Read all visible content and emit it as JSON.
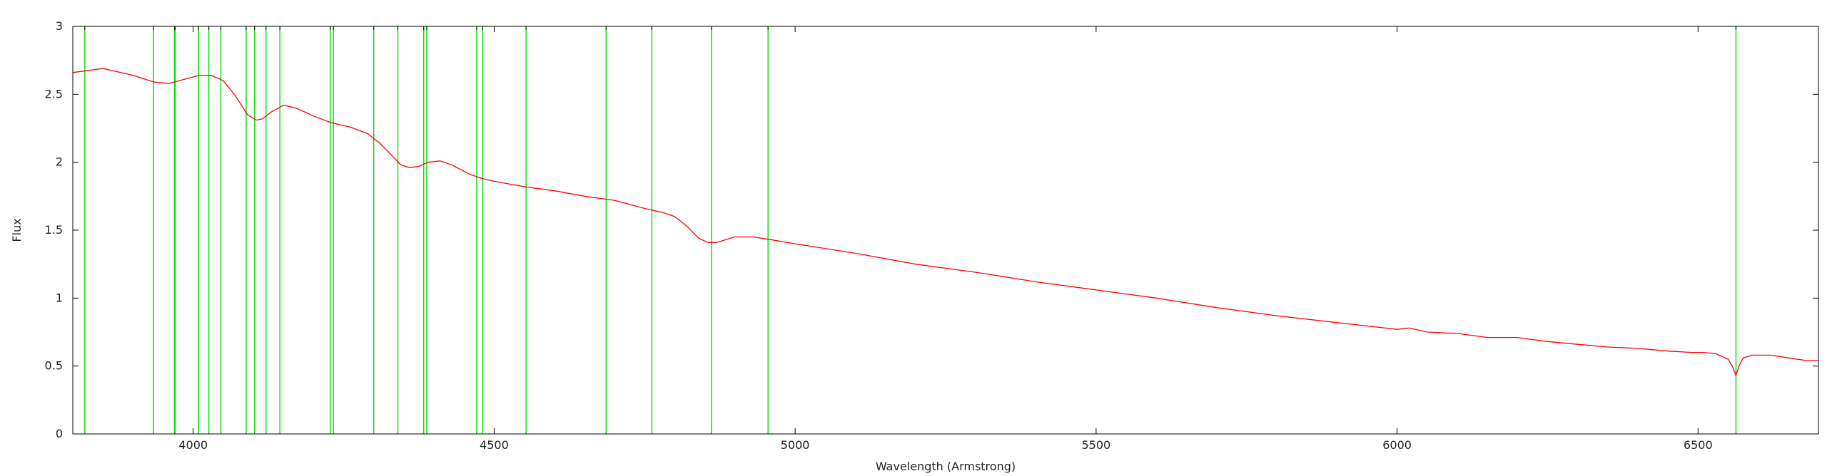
{
  "chart_data": {
    "type": "line",
    "xlabel": "Wavelength (Armstrong)",
    "ylabel": "Flux",
    "xlim": [
      3800,
      6700
    ],
    "ylim": [
      0,
      3
    ],
    "x_ticks": [
      4000,
      4500,
      5000,
      5500,
      6000,
      6500
    ],
    "y_ticks": [
      0,
      0.5,
      1,
      1.5,
      2,
      2.5,
      3
    ],
    "x_tick_labels": [
      "4000",
      "4500",
      "5000",
      "5500",
      "6000",
      "6500"
    ],
    "y_tick_labels": [
      "0",
      "0.5",
      "1",
      "1.5",
      "2",
      "2.5",
      "3"
    ],
    "grid": false,
    "legend": "none",
    "series": [
      {
        "color": "#ff0000",
        "x": [
          3800,
          3850,
          3900,
          3935,
          3960,
          3985,
          4010,
          4030,
          4050,
          4070,
          4090,
          4105,
          4115,
          4130,
          4150,
          4170,
          4200,
          4230,
          4260,
          4290,
          4310,
          4330,
          4345,
          4360,
          4375,
          4390,
          4410,
          4430,
          4460,
          4480,
          4500,
          4550,
          4600,
          4650,
          4700,
          4750,
          4780,
          4800,
          4820,
          4840,
          4855,
          4870,
          4885,
          4900,
          4930,
          4960,
          5000,
          5100,
          5200,
          5300,
          5400,
          5500,
          5600,
          5700,
          5800,
          5900,
          6000,
          6020,
          6030,
          6050,
          6100,
          6150,
          6200,
          6250,
          6300,
          6350,
          6400,
          6450,
          6490,
          6510,
          6530,
          6550,
          6558,
          6563,
          6568,
          6575,
          6590,
          6620,
          6650,
          6680,
          6700
        ],
        "y": [
          2.66,
          2.69,
          2.64,
          2.59,
          2.58,
          2.61,
          2.64,
          2.64,
          2.6,
          2.49,
          2.35,
          2.31,
          2.32,
          2.37,
          2.42,
          2.4,
          2.34,
          2.29,
          2.26,
          2.21,
          2.14,
          2.05,
          1.98,
          1.96,
          1.97,
          2.0,
          2.01,
          1.98,
          1.91,
          1.88,
          1.86,
          1.82,
          1.79,
          1.75,
          1.72,
          1.66,
          1.63,
          1.6,
          1.53,
          1.44,
          1.41,
          1.41,
          1.43,
          1.45,
          1.45,
          1.43,
          1.4,
          1.33,
          1.25,
          1.19,
          1.12,
          1.06,
          1.0,
          0.93,
          0.87,
          0.82,
          0.77,
          0.78,
          0.77,
          0.75,
          0.74,
          0.71,
          0.71,
          0.68,
          0.66,
          0.64,
          0.63,
          0.61,
          0.6,
          0.6,
          0.59,
          0.55,
          0.49,
          0.43,
          0.5,
          0.56,
          0.58,
          0.58,
          0.56,
          0.54,
          0.54
        ]
      }
    ],
    "reference_lines": {
      "color": "#00dd00",
      "x": [
        3820,
        3934,
        3969,
        3970,
        4009,
        4026,
        4046,
        4088,
        4102,
        4121,
        4144,
        4228,
        4233,
        4300,
        4340,
        4383,
        4388,
        4471,
        4481,
        4553,
        4686,
        4762,
        4861,
        4955,
        6563
      ]
    }
  }
}
